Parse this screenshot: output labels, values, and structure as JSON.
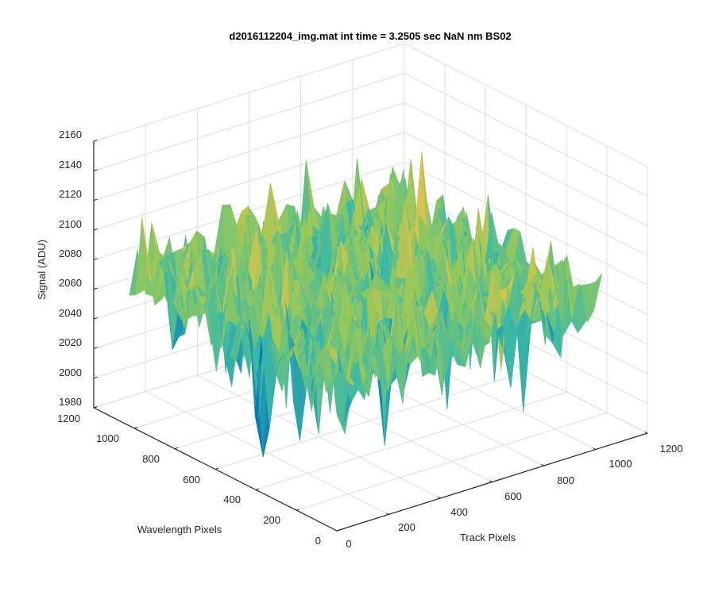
{
  "chart_data": {
    "type": "surface",
    "title": "d2016112204_img.mat int time = 3.2505 sec  NaN nm BS02",
    "xlabel": "Track Pixels",
    "ylabel": "Wavelength Pixels",
    "zlabel": "Signal (ADU)",
    "xlim": [
      0,
      1200
    ],
    "ylim": [
      0,
      1200
    ],
    "zlim": [
      1980,
      2160
    ],
    "xticks": [
      "0",
      "200",
      "400",
      "600",
      "800",
      "1000",
      "1200"
    ],
    "yticks": [
      "0",
      "200",
      "400",
      "600",
      "800",
      "1000",
      "1200"
    ],
    "zticks": [
      "1980",
      "2000",
      "2020",
      "2040",
      "2060",
      "2080",
      "2100",
      "2120",
      "2140",
      "2160"
    ],
    "data_extent": {
      "x": [
        0,
        1024
      ],
      "y": [
        0,
        1024
      ]
    },
    "signal_range": {
      "typical_low": 2020,
      "typical_high": 2120,
      "min_approx": 1985,
      "max_approx": 2145,
      "mean_approx": 2080
    },
    "grid": true,
    "colormap": "parula",
    "colors": {
      "low": "#0072BD",
      "mid": "#3CB9A5",
      "high": "#F5C04A",
      "axis": "#262626",
      "grid": "#DCDCDC"
    }
  }
}
